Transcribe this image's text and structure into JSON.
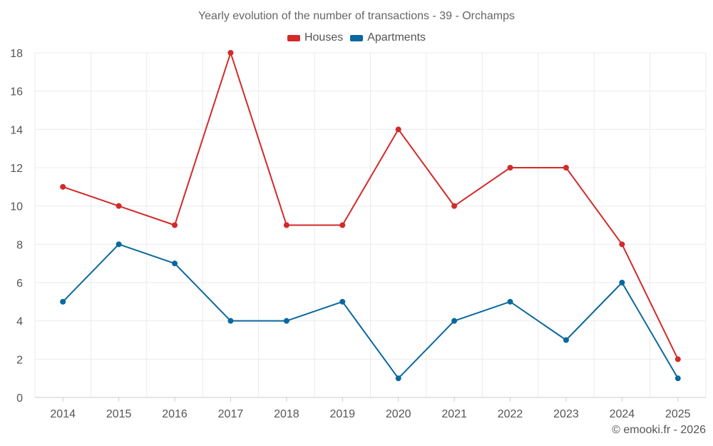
{
  "chart_data": {
    "type": "line",
    "title": "Yearly evolution of the number of transactions - 39 - Orchamps",
    "categories": [
      "2014",
      "2015",
      "2016",
      "2017",
      "2018",
      "2019",
      "2020",
      "2021",
      "2022",
      "2023",
      "2024",
      "2025"
    ],
    "series": [
      {
        "name": "Houses",
        "color": "#d32a2a",
        "values": [
          11,
          10,
          9,
          18,
          9,
          9,
          14,
          10,
          12,
          12,
          8,
          2
        ]
      },
      {
        "name": "Apartments",
        "color": "#0a689e",
        "values": [
          5,
          8,
          7,
          4,
          4,
          5,
          1,
          4,
          5,
          3,
          6,
          1
        ]
      }
    ],
    "ylim": [
      0,
      18
    ],
    "yticks": [
      0,
      2,
      4,
      6,
      8,
      10,
      12,
      14,
      16,
      18
    ],
    "xlabel": "",
    "ylabel": "",
    "grid": true,
    "legend_position": "top-center"
  },
  "credit": "© emooki.fr - 2026"
}
